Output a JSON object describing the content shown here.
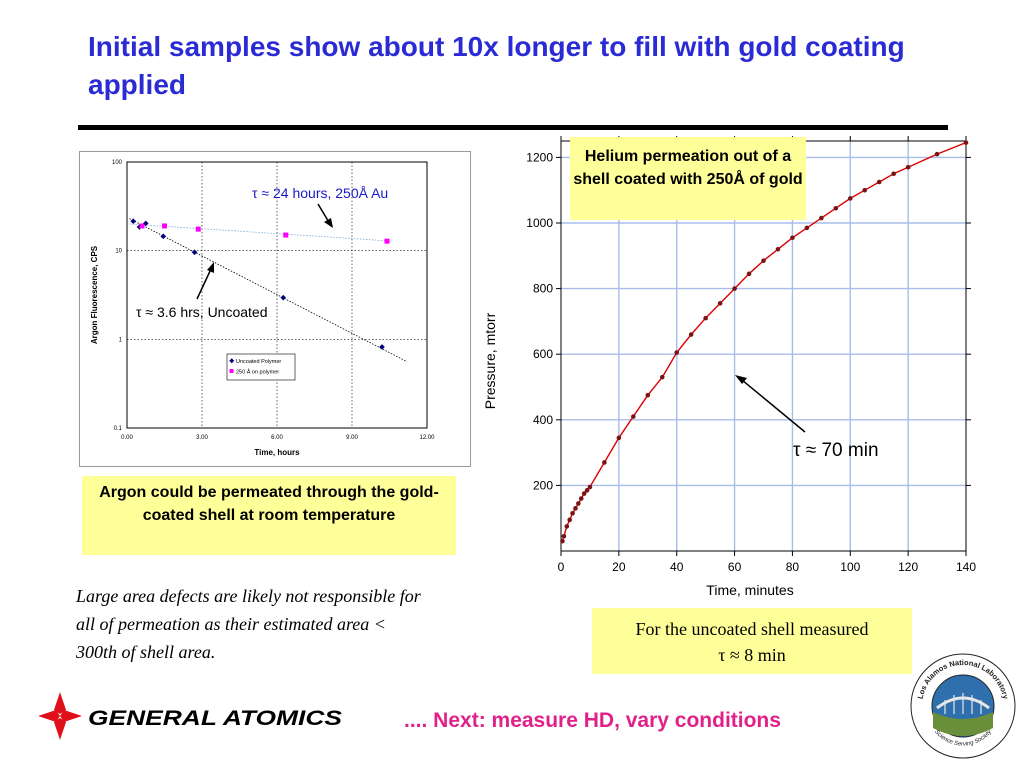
{
  "slide": {
    "title": "Initial samples show about 10x longer to fill with gold coating applied",
    "argon_note": "Argon could be permeated through the gold-coated shell at room temperature",
    "helium_note": "Helium permeation out of a shell coated with 250Å of gold",
    "uncoated_note_line1": "For the uncoated shell measured",
    "uncoated_note_line2": "τ ≈ 8 min",
    "defects_note": "Large area defects are likely not responsible for all of permeation as their estimated area < 300th of shell area.",
    "next_text": ".... Next:  measure HD, vary conditions",
    "company_logo_text": "GENERAL ATOMICS",
    "lab_logo_text_top": "Los Alamos National Laboratory",
    "lab_logo_text_bottom": "Science Serving Society",
    "colors": {
      "title_blue": "#2b2bd6",
      "note_yellow": "#ffff99",
      "next_pink": "#e0218a",
      "logo_red": "#e0101a",
      "fit_red": "#dd0000",
      "point_brown": "#7a1414"
    }
  },
  "chart_data": [
    {
      "type": "scatter",
      "xlabel": "Time, hours",
      "ylabel": "Argon Fluorescence, CPS",
      "xlim": [
        0,
        12
      ],
      "ylim": [
        0.1,
        100
      ],
      "yscale": "log",
      "xticks": [
        "0.00",
        "3.00",
        "6.00",
        "9.00",
        "12.00"
      ],
      "yticks": [
        "100",
        "10",
        "1",
        "0.1"
      ],
      "grid": "dotted",
      "legend_position": "inside-right",
      "annotations": [
        "τ ≈ 24 hours, 250Å Au",
        "τ ≈ 3.6 hrs, Uncoated"
      ],
      "series": [
        {
          "name": "Uncoated Polymer",
          "marker": "diamond",
          "color": "#00007a",
          "x": [
            0.25,
            0.5,
            0.75,
            1.45,
            2.7,
            6.25,
            10.2
          ],
          "y": [
            21.5,
            18.5,
            20.3,
            14.5,
            9.6,
            2.95,
            0.82
          ],
          "fit": {
            "x": [
              0.1,
              11.2
            ],
            "y": [
              23,
              0.56
            ]
          }
        },
        {
          "name": "250 Å on polymer",
          "marker": "square",
          "color": "#ff00ff",
          "x": [
            0.6,
            1.5,
            2.85,
            6.35,
            10.4
          ],
          "y": [
            19,
            19,
            17.5,
            15,
            12.8
          ],
          "fit": {
            "x": [
              0.1,
              10.6
            ],
            "y": [
              20,
              12.8
            ]
          }
        }
      ]
    },
    {
      "type": "scatter",
      "xlabel": "Time, minutes",
      "ylabel": "Pressure, mtorr",
      "xlim": [
        0,
        140
      ],
      "ylim": [
        0,
        1250
      ],
      "xticks": [
        "0",
        "20",
        "40",
        "60",
        "80",
        "100",
        "120",
        "140"
      ],
      "yticks": [
        "200",
        "400",
        "600",
        "800",
        "1000",
        "1200"
      ],
      "grid": "on",
      "annotations": [
        "τ ≈ 70 min"
      ],
      "series": [
        {
          "name": "",
          "marker": "circle",
          "color": "#7a1414",
          "x": [
            0.5,
            1,
            2,
            3,
            4,
            5,
            6,
            7,
            8,
            9,
            10,
            15,
            20,
            25,
            30,
            35,
            40,
            45,
            50,
            55,
            60,
            65,
            70,
            75,
            80,
            85,
            90,
            95,
            100,
            105,
            110,
            115,
            120,
            130,
            140
          ],
          "y": [
            30,
            45,
            75,
            95,
            115,
            130,
            145,
            160,
            175,
            185,
            195,
            270,
            345,
            410,
            475,
            530,
            605,
            660,
            710,
            755,
            800,
            845,
            885,
            920,
            955,
            985,
            1015,
            1045,
            1075,
            1100,
            1125,
            1150,
            1170,
            1210,
            1245
          ],
          "fit_color": "#dd0000"
        }
      ]
    }
  ]
}
